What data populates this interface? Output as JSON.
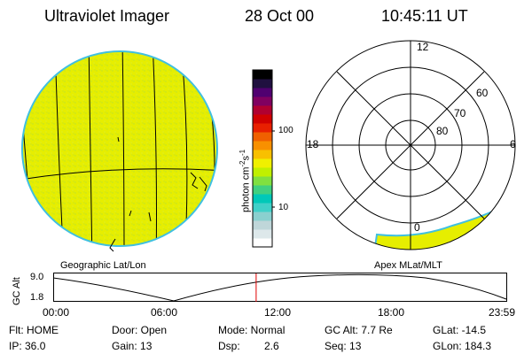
{
  "header": {
    "instrument": "Ultraviolet Imager",
    "date": "28 Oct 00",
    "time": "10:45:11 UT"
  },
  "globe_panel": {
    "label": "Geographic Lat/Lon",
    "fill_color": "#e8f000",
    "edge_color": "#40c0e0"
  },
  "polar_panel": {
    "label": "Apex MLat/MLT",
    "mlt_labels": {
      "top": "12",
      "left": "18",
      "right": "6",
      "bottom": "0"
    },
    "lat_labels": [
      "60",
      "70",
      "80"
    ]
  },
  "colorbar": {
    "unit_label_main": "photon cm",
    "unit_exp1": "-2",
    "unit_mid": "s",
    "unit_exp2": "-1",
    "ticks": [
      "100",
      "10"
    ],
    "colors": [
      "#ffffff",
      "#dde8ea",
      "#bfd6d9",
      "#8ad0cf",
      "#40d0c8",
      "#00c8b8",
      "#40d080",
      "#80e040",
      "#c0f000",
      "#f0f000",
      "#f8c000",
      "#f89000",
      "#f06000",
      "#e82000",
      "#d00000",
      "#b00030",
      "#800060",
      "#500070",
      "#201040",
      "#000000"
    ]
  },
  "altitude_plot": {
    "ylabel": "GC Alt",
    "y_ticks": [
      "9.0",
      "1.8"
    ],
    "x_ticks": [
      "00:00",
      "06:00",
      "12:00",
      "18:00",
      "23:59"
    ],
    "current_time_hours": 10.75,
    "marker_color": "#e00000"
  },
  "footer": {
    "flt": "Flt: HOME",
    "door": "Door: Open",
    "mode": "Mode: Normal",
    "gc_alt": "GC Alt: 7.7 Re",
    "glat": "GLat: -14.5",
    "ip": "IP: 36.0",
    "gain": "Gain: 13",
    "dsp_label": "Dsp:",
    "dsp_value": "2.6",
    "seq": "Seq: 13",
    "glon": "GLon: 184.3"
  }
}
